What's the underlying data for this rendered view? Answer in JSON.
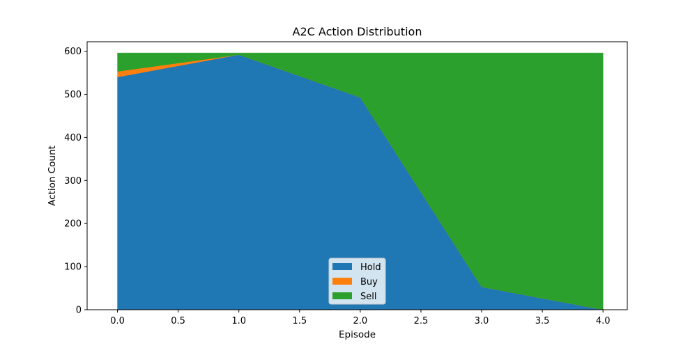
{
  "chart_data": {
    "type": "area",
    "stacked": true,
    "title": "A2C Action Distribution",
    "xlabel": "Episode",
    "ylabel": "Action Count",
    "x": [
      0,
      1,
      2,
      3,
      4
    ],
    "xlim": [
      -0.25,
      4.2
    ],
    "ylim": [
      0,
      622
    ],
    "xticks": [
      0.0,
      0.5,
      1.0,
      1.5,
      2.0,
      2.5,
      3.0,
      3.5,
      4.0
    ],
    "xtick_labels": [
      "0.0",
      "0.5",
      "1.0",
      "1.5",
      "2.0",
      "2.5",
      "3.0",
      "3.5",
      "4.0"
    ],
    "yticks": [
      0,
      100,
      200,
      300,
      400,
      500,
      600
    ],
    "ytick_labels": [
      "0",
      "100",
      "200",
      "300",
      "400",
      "500",
      "600"
    ],
    "series": [
      {
        "name": "Hold",
        "color": "#1f77b4",
        "values": [
          540,
          592,
          493,
          53,
          0
        ]
      },
      {
        "name": "Buy",
        "color": "#ff7f0e",
        "values": [
          13,
          0,
          0,
          0,
          0
        ]
      },
      {
        "name": "Sell",
        "color": "#2ca02c",
        "values": [
          43,
          4,
          103,
          543,
          596
        ]
      }
    ],
    "legend": {
      "position": "lower-center",
      "entries": [
        "Hold",
        "Buy",
        "Sell"
      ]
    },
    "grid": false
  }
}
